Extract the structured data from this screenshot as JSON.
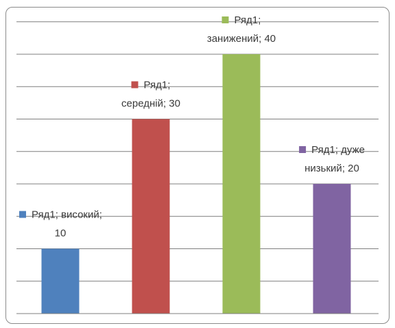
{
  "chart_data": {
    "type": "bar",
    "categories": [
      "високий",
      "середній",
      "занижений",
      "дуже низький"
    ],
    "series": [
      {
        "name": "Ряд1",
        "values": [
          10,
          30,
          40,
          20
        ],
        "colors": [
          "#4f81bd",
          "#c0504d",
          "#9bbb59",
          "#8064a2"
        ]
      }
    ],
    "data_labels": [
      [
        "Ряд1; високий;",
        "10"
      ],
      [
        "Ряд1;",
        "середній; 30"
      ],
      [
        "Ряд1;",
        "занижений; 40"
      ],
      [
        "Ряд1; дуже",
        "низький; 20"
      ]
    ],
    "title": "",
    "xlabel": "",
    "ylabel": "",
    "ylim": [
      0,
      45
    ],
    "grid": true,
    "legend": "none"
  },
  "colors": {
    "gridline": "#7f7f7f",
    "axis": "#7f7f7f",
    "label_text": "#3a3a3a"
  }
}
